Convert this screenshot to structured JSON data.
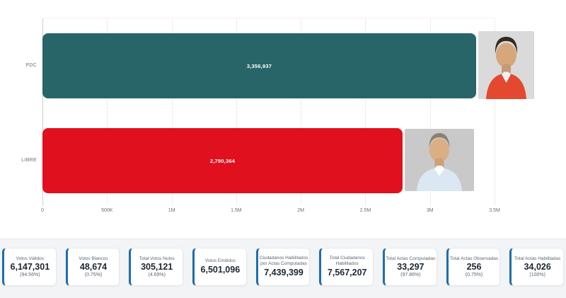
{
  "chart_data": {
    "type": "bar",
    "orientation": "horizontal",
    "title": "",
    "xlabel": "",
    "ylabel": "",
    "categories": [
      "PDC",
      "LIBRE"
    ],
    "values": [
      3356937,
      2790364
    ],
    "value_labels": [
      "3,356,937",
      "2,790,364"
    ],
    "bar_colors": [
      "#286568",
      "#e1101e"
    ],
    "xlim": [
      0,
      3500000
    ],
    "x_ticks": [
      "0",
      "500K",
      "1M",
      "1.5M",
      "2M",
      "2.5M",
      "3M",
      "3.5M"
    ],
    "grid": true,
    "legend_position": "none"
  },
  "candidates": [
    {
      "party": "PDC",
      "photo": "candidate headshot, red jacket"
    },
    {
      "party": "LIBRE",
      "photo": "candidate headshot, light blue shirt"
    }
  ],
  "summary_cards": [
    {
      "label": "Votos Válidos",
      "value": "6,147,301",
      "percent": "(94.56%)"
    },
    {
      "label": "Votos Blancos",
      "value": "48,674",
      "percent": "(0.75%)"
    },
    {
      "label": "Total Votos Nulos",
      "value": "305,121",
      "percent": "(4.69%)"
    },
    {
      "label": "Votos Emitidos",
      "value": "6,501,096",
      "percent": ""
    },
    {
      "label": "Ciudadanos Habilitados por Actas Computadas",
      "value": "7,439,399",
      "percent": ""
    },
    {
      "label": "Total Ciudadanos Habilitados",
      "value": "7,567,207",
      "percent": ""
    },
    {
      "label": "Total Actas Computadas",
      "value": "33,297",
      "percent": "(97.86%)"
    },
    {
      "label": "Total Actas Observadas",
      "value": "256",
      "percent": "(0.75%)"
    },
    {
      "label": "Total Actas Habilitadas",
      "value": "34,026",
      "percent": "(100%)"
    }
  ],
  "colors": {
    "bar_pdc": "#286568",
    "bar_libre": "#e1101e",
    "card_accent": "#1e6fad",
    "stats_background": "#f3f4f6"
  }
}
